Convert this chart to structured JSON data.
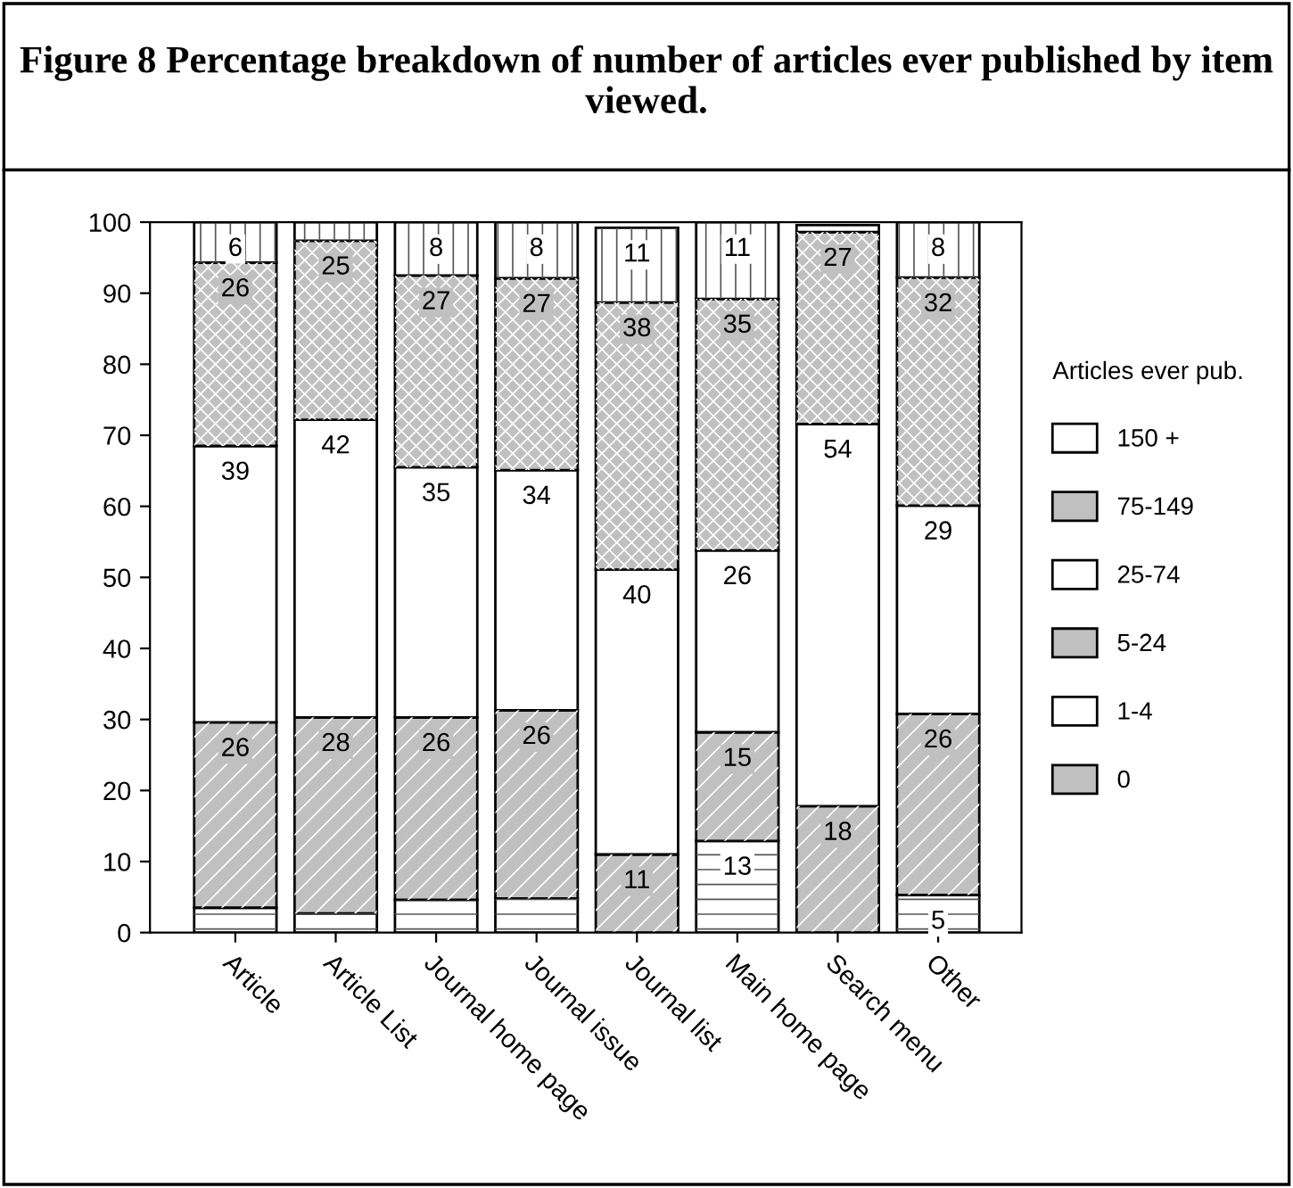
{
  "chart_data": {
    "type": "bar",
    "stacked": true,
    "title": "Figure 8 Percentage breakdown of number of articles ever published by item viewed.",
    "categories": [
      "Article",
      "Article List",
      "Journal home page",
      "Journal issue",
      "Journal list",
      "Main home page",
      "Search menu",
      "Other"
    ],
    "series": [
      {
        "name": "0",
        "color": "#c0c0c0",
        "values": [
          0,
          0,
          0,
          0,
          null,
          0,
          null,
          0
        ],
        "value_labels": [
          null,
          null,
          null,
          null,
          null,
          null,
          null,
          null
        ]
      },
      {
        "name": "1-4",
        "color": "#ffffff",
        "values": [
          3.5,
          2.7,
          4.6,
          4.8,
          null,
          12.9,
          0,
          5.3
        ],
        "value_labels": [
          null,
          null,
          null,
          null,
          null,
          "13",
          null,
          "5"
        ]
      },
      {
        "name": "5-24",
        "color": "#c0c0c0",
        "values": [
          26.1,
          27.6,
          25.7,
          26.5,
          11.0,
          15.3,
          17.8,
          25.5
        ],
        "value_labels": [
          "26",
          "28",
          "26",
          "26",
          "11",
          "15",
          "18",
          "26"
        ]
      },
      {
        "name": "25-74",
        "color": "#ffffff",
        "values": [
          38.9,
          41.9,
          35.2,
          33.8,
          40.1,
          25.6,
          53.8,
          29.3
        ],
        "value_labels": [
          "39",
          "42",
          "35",
          "34",
          "40",
          "26",
          "54",
          "29"
        ]
      },
      {
        "name": "75-149",
        "color": "#c0c0c0",
        "values": [
          25.8,
          25.2,
          27.0,
          27.0,
          37.6,
          35.4,
          27.0,
          32.1
        ],
        "value_labels": [
          "26",
          "25",
          "27",
          "27",
          "38",
          "35",
          "27",
          "32"
        ]
      },
      {
        "name": "150 +",
        "color": "#ffffff",
        "values": [
          5.7,
          2.6,
          7.5,
          7.9,
          10.5,
          10.8,
          1.0,
          7.8
        ],
        "value_labels": [
          "6",
          null,
          "8",
          "8",
          "11",
          "11",
          null,
          "8"
        ]
      }
    ],
    "ylim": [
      0,
      100
    ],
    "yticks": [
      0,
      10,
      20,
      30,
      40,
      50,
      60,
      70,
      80,
      90,
      100
    ],
    "grid": false,
    "legend": "right",
    "legend_title": "Articles ever pub."
  }
}
